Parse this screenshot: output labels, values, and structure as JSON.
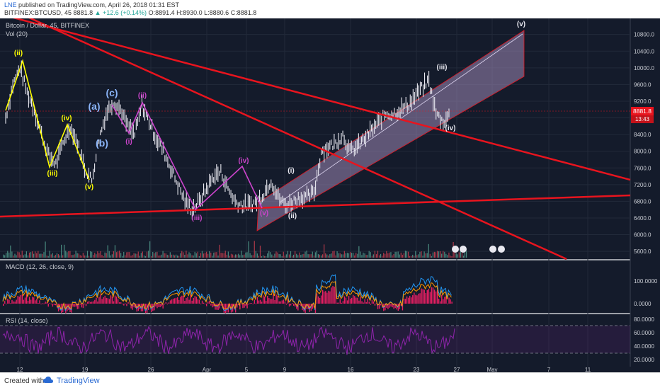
{
  "header": {
    "author": "LNE",
    "published": "published on TradingView.com, April 26, 2018 01:31 EST",
    "symbol": "BITFINEX:BTCUSD, 45",
    "last": "8881.8",
    "change": "▲ +12.6 (+0.14%)",
    "open": "O:8891.4",
    "high": "H:8930.0",
    "low": "L:8880.6",
    "close": "C:8881.8"
  },
  "footer": {
    "created": "Created with",
    "brand": "TradingView"
  },
  "colors": {
    "trendline": "#e8141e",
    "yellow_wave": "#ffff00",
    "purple_wave": "#cc44cc",
    "blue_label": "#8ab4f8",
    "channel_fill": "#9c86b5",
    "macd_hist": "#e91e63",
    "macd_line": "#2196f3",
    "signal_line": "#ff9800",
    "rsi_line": "#8e24aa"
  },
  "chart_data": {
    "type": "line",
    "title": "Bitcoin / Dollar, 45, BITFINEX",
    "volume_label": "Vol (20)",
    "last_price": "8881.8",
    "countdown": "13:43",
    "y_ticks": [
      "10800.0",
      "10400.0",
      "10000.0",
      "9600.0",
      "9200.0",
      "8800.0",
      "8400.0",
      "8000.0",
      "7600.0",
      "7200.0",
      "6800.0",
      "6400.0",
      "6000.0",
      "5600.0"
    ],
    "ylim": [
      5500,
      11100
    ],
    "x_ticks": [
      "12",
      "19",
      "26",
      "Apr",
      "5",
      "9",
      "16",
      "23",
      "27",
      "May",
      "7",
      "11"
    ],
    "price_path": [
      [
        0,
        8800
      ],
      [
        1,
        9600
      ],
      [
        2,
        10000
      ],
      [
        3,
        9400
      ],
      [
        4,
        9000
      ],
      [
        5,
        8400
      ],
      [
        6,
        7900
      ],
      [
        7,
        7700
      ],
      [
        8,
        8200
      ],
      [
        9,
        8600
      ],
      [
        10,
        8200
      ],
      [
        11,
        7600
      ],
      [
        12,
        7300
      ],
      [
        13,
        8300
      ],
      [
        14,
        8900
      ],
      [
        15,
        9200
      ],
      [
        16,
        9000
      ],
      [
        17,
        8600
      ],
      [
        18,
        8400
      ],
      [
        19,
        9100
      ],
      [
        20,
        8700
      ],
      [
        21,
        8300
      ],
      [
        22,
        8000
      ],
      [
        23,
        7600
      ],
      [
        24,
        7200
      ],
      [
        25,
        6800
      ],
      [
        26,
        6600
      ],
      [
        27,
        6800
      ],
      [
        28,
        7100
      ],
      [
        29,
        7400
      ],
      [
        30,
        7500
      ],
      [
        31,
        7100
      ],
      [
        32,
        6800
      ],
      [
        33,
        6700
      ],
      [
        34,
        6700
      ],
      [
        35,
        6800
      ],
      [
        36,
        7000
      ],
      [
        37,
        7300
      ],
      [
        38,
        6900
      ],
      [
        39,
        6700
      ],
      [
        40,
        6800
      ],
      [
        41,
        6900
      ],
      [
        42,
        6900
      ],
      [
        43,
        7000
      ],
      [
        44,
        8000
      ],
      [
        45,
        8100
      ],
      [
        46,
        8200
      ],
      [
        47,
        8400
      ],
      [
        48,
        8000
      ],
      [
        49,
        8100
      ],
      [
        50,
        8300
      ],
      [
        51,
        8500
      ],
      [
        52,
        8700
      ],
      [
        53,
        8900
      ],
      [
        54,
        8900
      ],
      [
        55,
        9000
      ],
      [
        56,
        9100
      ],
      [
        57,
        9300
      ],
      [
        58,
        9500
      ],
      [
        59,
        9700
      ],
      [
        60,
        8900
      ],
      [
        61,
        8700
      ],
      [
        62,
        8900
      ]
    ],
    "yellow_wave": {
      "points": [
        [
          0,
          8800
        ],
        [
          2,
          10000
        ],
        [
          7,
          7700
        ],
        [
          9,
          8600
        ],
        [
          12,
          7300
        ]
      ],
      "labels": [
        "(ii)",
        "(iii)",
        "(iv)",
        "(v)"
      ]
    },
    "blue_labels": [
      "(a)",
      "(b)",
      "(c)"
    ],
    "purple_wave": {
      "points": [
        [
          15,
          9200
        ],
        [
          18,
          8400
        ],
        [
          19,
          9100
        ],
        [
          26,
          6600
        ],
        [
          30,
          7500
        ],
        [
          33,
          6700
        ]
      ],
      "labels": [
        "(ii)",
        "(i)",
        "(iii)",
        "(iv)",
        "(v)"
      ]
    },
    "channel_labels": [
      "(i)",
      "(ii)",
      "(iii)",
      "(iv)",
      "(v)"
    ],
    "macd": {
      "label": "MACD (12, 26, close, 9)",
      "y_ticks": [
        "100.0000",
        "0.0000"
      ]
    },
    "rsi": {
      "label": "RSI (14, close)",
      "y_ticks": [
        "80.0000",
        "60.0000",
        "40.0000",
        "20.0000"
      ],
      "upper": 70,
      "lower": 30
    }
  }
}
